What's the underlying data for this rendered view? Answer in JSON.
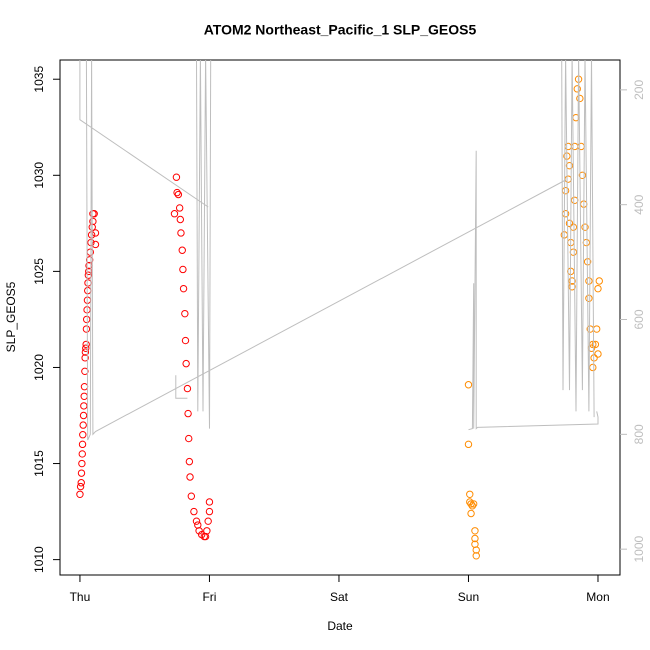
{
  "chart_data": {
    "type": "scatter",
    "title": "ATOM2 Northeast_Pacific_1 SLP_GEOS5",
    "xlabel": "Date",
    "ylabel": "SLP_GEOS5",
    "xlim": [
      -0.154,
      4.17
    ],
    "xticks": [
      {
        "value": 0,
        "label": "Thu"
      },
      {
        "value": 1,
        "label": "Fri"
      },
      {
        "value": 2,
        "label": "Sat"
      },
      {
        "value": 3,
        "label": "Sun"
      },
      {
        "value": 4,
        "label": "Mon"
      }
    ],
    "ylim": [
      1009.2,
      1036
    ],
    "yticks": [
      1010,
      1015,
      1020,
      1025,
      1030,
      1035
    ],
    "y2lim": [
      1045,
      148
    ],
    "y2ticks": [
      200,
      400,
      600,
      800,
      1000
    ],
    "y2color": "#bebebe",
    "series": [
      {
        "color": "#ff0000",
        "x": [
          0.0,
          0.005,
          0.01,
          0.012,
          0.015,
          0.018,
          0.02,
          0.022,
          0.025,
          0.028,
          0.03,
          0.033,
          0.035,
          0.038,
          0.04,
          0.042,
          0.045,
          0.048,
          0.05,
          0.052,
          0.055,
          0.058,
          0.06,
          0.062,
          0.065,
          0.068,
          0.07,
          0.075,
          0.08,
          0.085,
          0.09,
          0.095,
          0.1,
          0.1,
          0.11,
          0.12,
          0.12,
          0.73,
          0.745,
          0.75,
          0.76,
          0.77,
          0.775,
          0.78,
          0.79,
          0.795,
          0.8,
          0.81,
          0.815,
          0.82,
          0.83,
          0.835,
          0.84,
          0.845,
          0.85,
          0.86,
          0.88,
          0.9,
          0.91,
          0.92,
          0.94,
          0.96,
          0.97,
          0.98,
          0.99,
          1.0,
          1.0
        ],
        "values": [
          1013.4,
          1013.8,
          1014,
          1014.5,
          1015,
          1015.5,
          1016,
          1016.5,
          1017,
          1017.5,
          1018,
          1018.5,
          1019,
          1019.8,
          1020.5,
          1020.8,
          1021,
          1021.2,
          1022,
          1022.5,
          1023,
          1023.5,
          1024,
          1024.4,
          1024.8,
          1025,
          1025.3,
          1025.6,
          1026,
          1026.5,
          1026.9,
          1027.3,
          1027.6,
          1028,
          1028,
          1027,
          1026.4,
          1028,
          1029.9,
          1029.1,
          1029,
          1028.3,
          1027.7,
          1027,
          1026.1,
          1025.1,
          1024.1,
          1022.8,
          1021.4,
          1020.2,
          1018.9,
          1017.6,
          1016.3,
          1015.1,
          1014.3,
          1013.3,
          1012.5,
          1012,
          1011.8,
          1011.5,
          1011.3,
          1011.2,
          1011.2,
          1011.5,
          1012,
          1012.5,
          1013
        ]
      },
      {
        "color": "#ff8c00",
        "x": [
          3.0,
          3.0,
          3.01,
          3.01,
          3.02,
          3.03,
          3.04,
          3.02,
          3.05,
          3.05,
          3.05,
          3.06,
          3.06,
          3.74,
          3.75,
          3.75,
          3.76,
          3.77,
          3.77,
          3.78,
          3.78,
          3.79,
          3.79,
          3.8,
          3.8,
          3.81,
          3.81,
          3.82,
          3.82,
          3.83,
          3.84,
          3.85,
          3.86,
          3.87,
          3.88,
          3.89,
          3.9,
          3.91,
          3.92,
          3.93,
          3.93,
          3.94,
          3.95,
          3.96,
          3.96,
          3.97,
          3.98,
          3.99,
          4.0,
          4.0,
          4.01
        ],
        "values": [
          1019.1,
          1016,
          1013.4,
          1013,
          1012.9,
          1012.8,
          1012.9,
          1012.4,
          1011.5,
          1011.1,
          1010.8,
          1010.5,
          1010.2,
          1026.9,
          1028,
          1029.2,
          1031,
          1031.5,
          1029.8,
          1030.5,
          1027.5,
          1026.5,
          1025,
          1024.5,
          1024.2,
          1026,
          1027.3,
          1028.7,
          1031.5,
          1033,
          1034.5,
          1035,
          1034,
          1031.5,
          1030,
          1028.5,
          1027.3,
          1026.5,
          1025.5,
          1024.5,
          1023.6,
          1022,
          1021,
          1020,
          1021.2,
          1020.5,
          1021.2,
          1022,
          1020.7,
          1024.1,
          1024.5
        ]
      },
      {
        "type": "line",
        "axis": "y2",
        "color": "#bebebe",
        "x": [
          0.0,
          0.0,
          0.99,
          null,
          0.05,
          0.06,
          0.08,
          0.09,
          0.1,
          0.12,
          3.75,
          null,
          0.9,
          0.91,
          0.93,
          0.95,
          0.97,
          1.0,
          1.01,
          null,
          0.74,
          0.74,
          0.83,
          null,
          3.0,
          3.03,
          3.04,
          3.04,
          3.06,
          3.06,
          3.07,
          4.0,
          4.0,
          3.99,
          null,
          3.72,
          3.73,
          3.75,
          3.78,
          3.8,
          3.83,
          3.85,
          3.88,
          3.9,
          3.93,
          3.95,
          3.97
        ],
        "values": [
          140,
          252,
          404,
          null,
          140,
          810,
          800,
          140,
          800,
          795,
          357,
          null,
          140,
          760,
          140,
          760,
          140,
          790,
          140,
          null,
          697,
          737,
          737,
          null,
          792,
          790,
          537,
          790,
          306,
          790,
          788,
          782,
          770,
          760,
          null,
          140,
          723,
          140,
          723,
          140,
          760,
          140,
          723,
          140,
          760,
          140,
          770
        ]
      }
    ]
  }
}
